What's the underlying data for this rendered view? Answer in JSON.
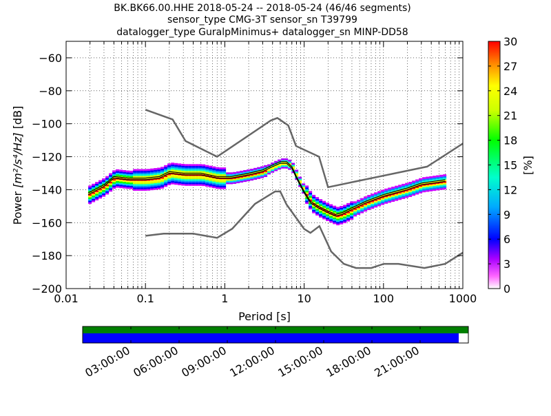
{
  "header": {
    "line1": "BK.BK66.00.HHE   2018-05-24 -- 2018-05-24  (46/46 segments)",
    "line2": "sensor_type CMG-3T sensor_sn T39799",
    "line3": "datalogger_type GuralpMinimus+ datalogger_sn MINP-DD58"
  },
  "colorbar": {
    "label": "[%]",
    "ticks": [
      "0",
      "3",
      "6",
      "9",
      "12",
      "15",
      "18",
      "21",
      "24",
      "27",
      "30"
    ],
    "range": [
      0,
      30
    ]
  },
  "timeline": {
    "ticks": [
      "03:00:00",
      "06:00:00",
      "09:00:00",
      "12:00:00",
      "15:00:00",
      "18:00:00",
      "21:00:00"
    ],
    "top_bar_color": "#008000",
    "bottom_bar_color": "#0000ff",
    "bottom_bar_coverage_fraction": 0.975
  },
  "chart_data": {
    "type": "heatmap",
    "xlabel": "Period [s]",
    "ylabel_prefix": "Power ",
    "ylabel_math": "[m²/s⁴/Hz]",
    "ylabel_suffix": " [dB]",
    "xscale": "log",
    "xlim": [
      0.01,
      1000
    ],
    "ylim": [
      -200,
      -50
    ],
    "xticks": [
      {
        "v": 0.01,
        "label": "0.01"
      },
      {
        "v": 0.1,
        "label": "0.1"
      },
      {
        "v": 1,
        "label": "1"
      },
      {
        "v": 10,
        "label": "10"
      },
      {
        "v": 100,
        "label": "100"
      },
      {
        "v": 1000,
        "label": "1000"
      }
    ],
    "yticks": [
      {
        "v": -60,
        "label": "−60"
      },
      {
        "v": -80,
        "label": "−80"
      },
      {
        "v": -100,
        "label": "−100"
      },
      {
        "v": -120,
        "label": "−120"
      },
      {
        "v": -140,
        "label": "−140"
      },
      {
        "v": -160,
        "label": "−160"
      },
      {
        "v": -180,
        "label": "−180"
      },
      {
        "v": -200,
        "label": "−200"
      }
    ],
    "grid": true,
    "nhnm": {
      "name": "NHNM",
      "x": [
        0.1,
        0.22,
        0.32,
        0.8,
        3.8,
        4.6,
        6.3,
        7.9,
        15.4,
        20,
        354.8,
        1000
      ],
      "y": [
        -91.5,
        -97.4,
        -110.5,
        -120,
        -98,
        -96.5,
        -101,
        -113.5,
        -120,
        -138.5,
        -126,
        -112
      ]
    },
    "nlnm": {
      "name": "NLNM",
      "x": [
        0.1,
        0.17,
        0.4,
        0.8,
        1.24,
        2.4,
        4.3,
        5,
        6,
        10,
        12,
        15.6,
        21.9,
        31.6,
        45,
        70,
        101,
        154,
        328,
        600,
        1000
      ],
      "y": [
        -168,
        -166.7,
        -166.7,
        -169.2,
        -163.7,
        -148.6,
        -141.1,
        -141.1,
        -149,
        -163.8,
        -166.2,
        -162.1,
        -177.5,
        -185,
        -187.5,
        -187.5,
        -185,
        -185,
        -187.5,
        -185,
        -178.2
      ]
    },
    "mode_curve": {
      "x": [
        0.019,
        0.025,
        0.03,
        0.04,
        0.06,
        0.1,
        0.15,
        0.2,
        0.3,
        0.5,
        0.8,
        1.2,
        2,
        3,
        4,
        5,
        6,
        7,
        8,
        10,
        12,
        15,
        20,
        25,
        30,
        40,
        60,
        100,
        200,
        300,
        600
      ],
      "y": [
        -143,
        -140,
        -138,
        -133,
        -134,
        -134,
        -133,
        -130,
        -131,
        -131,
        -133,
        -133,
        -131,
        -129,
        -126,
        -124,
        -124,
        -127,
        -133,
        -142,
        -148,
        -151,
        -154,
        -156,
        -155,
        -152,
        -148,
        -144,
        -140,
        -137,
        -135
      ]
    },
    "mean_curve": {
      "x": [
        0.019,
        0.025,
        0.03,
        0.04,
        0.06,
        0.1,
        0.15,
        0.2,
        0.3,
        0.5,
        0.8,
        1.2,
        2,
        3,
        4,
        5,
        6,
        7,
        8,
        10,
        12,
        15,
        20,
        25,
        30,
        40,
        60,
        100,
        200,
        300,
        600
      ],
      "y": [
        -142,
        -139,
        -137,
        -132,
        -133,
        -133,
        -132,
        -129,
        -130,
        -130,
        -132,
        -132,
        -130,
        -128,
        -125,
        -123,
        -123,
        -126,
        -132,
        -141,
        -147,
        -150,
        -153,
        -155,
        -154,
        -151,
        -147,
        -143,
        -139,
        -136,
        -134
      ]
    },
    "colorbar_range": [
      0,
      30
    ],
    "colorbar_label": "[%]"
  }
}
